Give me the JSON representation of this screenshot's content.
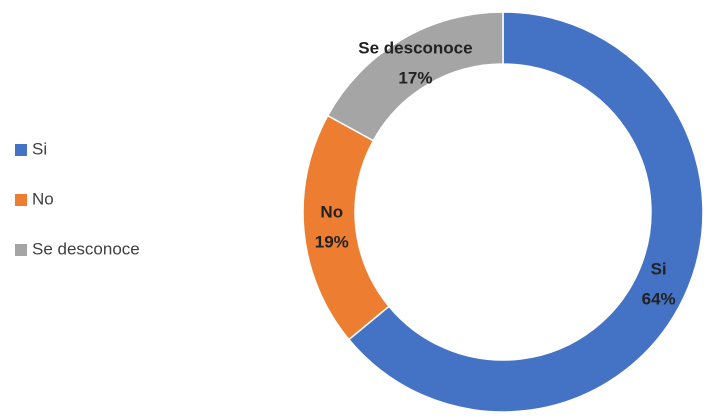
{
  "chart_data": {
    "type": "donut",
    "categories": [
      "Si",
      "No",
      "Se desconoce"
    ],
    "values": [
      64,
      19,
      17
    ],
    "value_labels": [
      "64%",
      "19%",
      "17%"
    ],
    "colors": [
      "#4472c4",
      "#ed7d31",
      "#a5a5a5"
    ],
    "legend": "left"
  }
}
